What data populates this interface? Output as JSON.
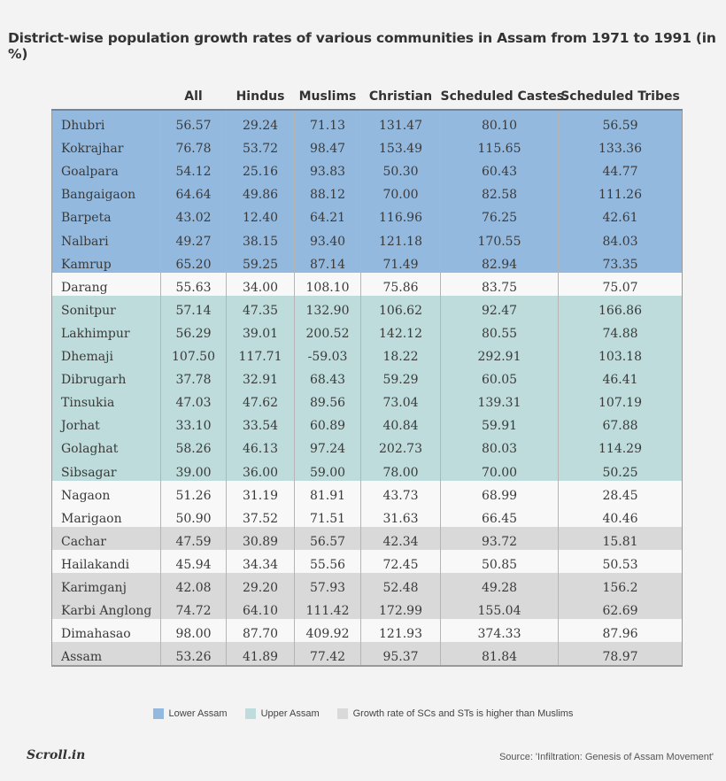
{
  "chart_data": {
    "type": "table",
    "title": "District-wise population growth rates of various communities in Assam from 1971 to 1991 (in %)",
    "columns": [
      "",
      "All",
      "Hindus",
      "Muslims",
      "Christian",
      "Scheduled Castes",
      "Scheduled Tribes"
    ],
    "rows": [
      {
        "group": "lower",
        "cells": [
          "Dhubri",
          "56.57",
          "29.24",
          "71.13",
          "131.47",
          "80.10",
          "56.59"
        ]
      },
      {
        "group": "lower",
        "cells": [
          "Kokrajhar",
          "76.78",
          "53.72",
          "98.47",
          "153.49",
          "115.65",
          "133.36"
        ]
      },
      {
        "group": "lower",
        "cells": [
          "Goalpara",
          "54.12",
          "25.16",
          "93.83",
          "50.30",
          "60.43",
          "44.77"
        ]
      },
      {
        "group": "lower",
        "cells": [
          "Bangaigaon",
          "64.64",
          "49.86",
          "88.12",
          "70.00",
          "82.58",
          "111.26"
        ]
      },
      {
        "group": "lower",
        "cells": [
          "Barpeta",
          "43.02",
          "12.40",
          "64.21",
          "116.96",
          "76.25",
          "42.61"
        ]
      },
      {
        "group": "lower",
        "cells": [
          "Nalbari",
          "49.27",
          "38.15",
          "93.40",
          "121.18",
          "170.55",
          "84.03"
        ]
      },
      {
        "group": "lower",
        "cells": [
          "Kamrup",
          "65.20",
          "59.25",
          "87.14",
          "71.49",
          "82.94",
          "73.35"
        ]
      },
      {
        "group": "plain",
        "cells": [
          "Darang",
          "55.63",
          "34.00",
          "108.10",
          "75.86",
          "83.75",
          "75.07"
        ]
      },
      {
        "group": "upper",
        "cells": [
          "Sonitpur",
          "57.14",
          "47.35",
          "132.90",
          "106.62",
          "92.47",
          "166.86"
        ]
      },
      {
        "group": "upper",
        "cells": [
          "Lakhimpur",
          "56.29",
          "39.01",
          "200.52",
          "142.12",
          "80.55",
          "74.88"
        ]
      },
      {
        "group": "upper",
        "cells": [
          "Dhemaji",
          "107.50",
          "117.71",
          "-59.03",
          "18.22",
          "292.91",
          "103.18"
        ]
      },
      {
        "group": "upper",
        "cells": [
          "Dibrugarh",
          "37.78",
          "32.91",
          "68.43",
          "59.29",
          "60.05",
          "46.41"
        ]
      },
      {
        "group": "upper",
        "cells": [
          "Tinsukia",
          "47.03",
          "47.62",
          "89.56",
          "73.04",
          "139.31",
          "107.19"
        ]
      },
      {
        "group": "upper",
        "cells": [
          "Jorhat",
          "33.10",
          "33.54",
          "60.89",
          "40.84",
          "59.91",
          "67.88"
        ]
      },
      {
        "group": "upper",
        "cells": [
          "Golaghat",
          "58.26",
          "46.13",
          "97.24",
          "202.73",
          "80.03",
          "114.29"
        ]
      },
      {
        "group": "upper",
        "cells": [
          "Sibsagar",
          "39.00",
          "36.00",
          "59.00",
          "78.00",
          "70.00",
          "50.25"
        ]
      },
      {
        "group": "plain",
        "cells": [
          "Nagaon",
          "51.26",
          "31.19",
          "81.91",
          "43.73",
          "68.99",
          "28.45"
        ]
      },
      {
        "group": "plain",
        "cells": [
          "Marigaon",
          "50.90",
          "37.52",
          "71.51",
          "31.63",
          "66.45",
          "40.46"
        ]
      },
      {
        "group": "higher",
        "cells": [
          "Cachar",
          "47.59",
          "30.89",
          "56.57",
          "42.34",
          "93.72",
          "15.81"
        ]
      },
      {
        "group": "plain",
        "cells": [
          "Hailakandi",
          "45.94",
          "34.34",
          "55.56",
          "72.45",
          "50.85",
          "50.53"
        ]
      },
      {
        "group": "higher",
        "cells": [
          "Karimganj",
          "42.08",
          "29.20",
          "57.93",
          "52.48",
          "49.28",
          "156.2"
        ]
      },
      {
        "group": "higher",
        "cells": [
          "Karbi Anglong",
          "74.72",
          "64.10",
          "111.42",
          "172.99",
          "155.04",
          "62.69"
        ]
      },
      {
        "group": "plain",
        "cells": [
          "Dimahasao",
          "98.00",
          "87.70",
          "409.92",
          "121.93",
          "374.33",
          "87.96"
        ]
      },
      {
        "group": "higher",
        "cells": [
          "Assam",
          "53.26",
          "41.89",
          "77.42",
          "95.37",
          "81.84",
          "78.97"
        ]
      }
    ],
    "legend": [
      {
        "label": "Lower Assam",
        "color": "#94b9de"
      },
      {
        "label": "Upper Assam",
        "color": "#bddcdb"
      },
      {
        "label": "Growth rate of SCs and STs is higher than Muslims",
        "color": "#d9d9d9"
      }
    ]
  },
  "footer": {
    "logo": "Scroll.in",
    "source": "Source: 'Infiltration: Genesis of Assam Movement'"
  }
}
